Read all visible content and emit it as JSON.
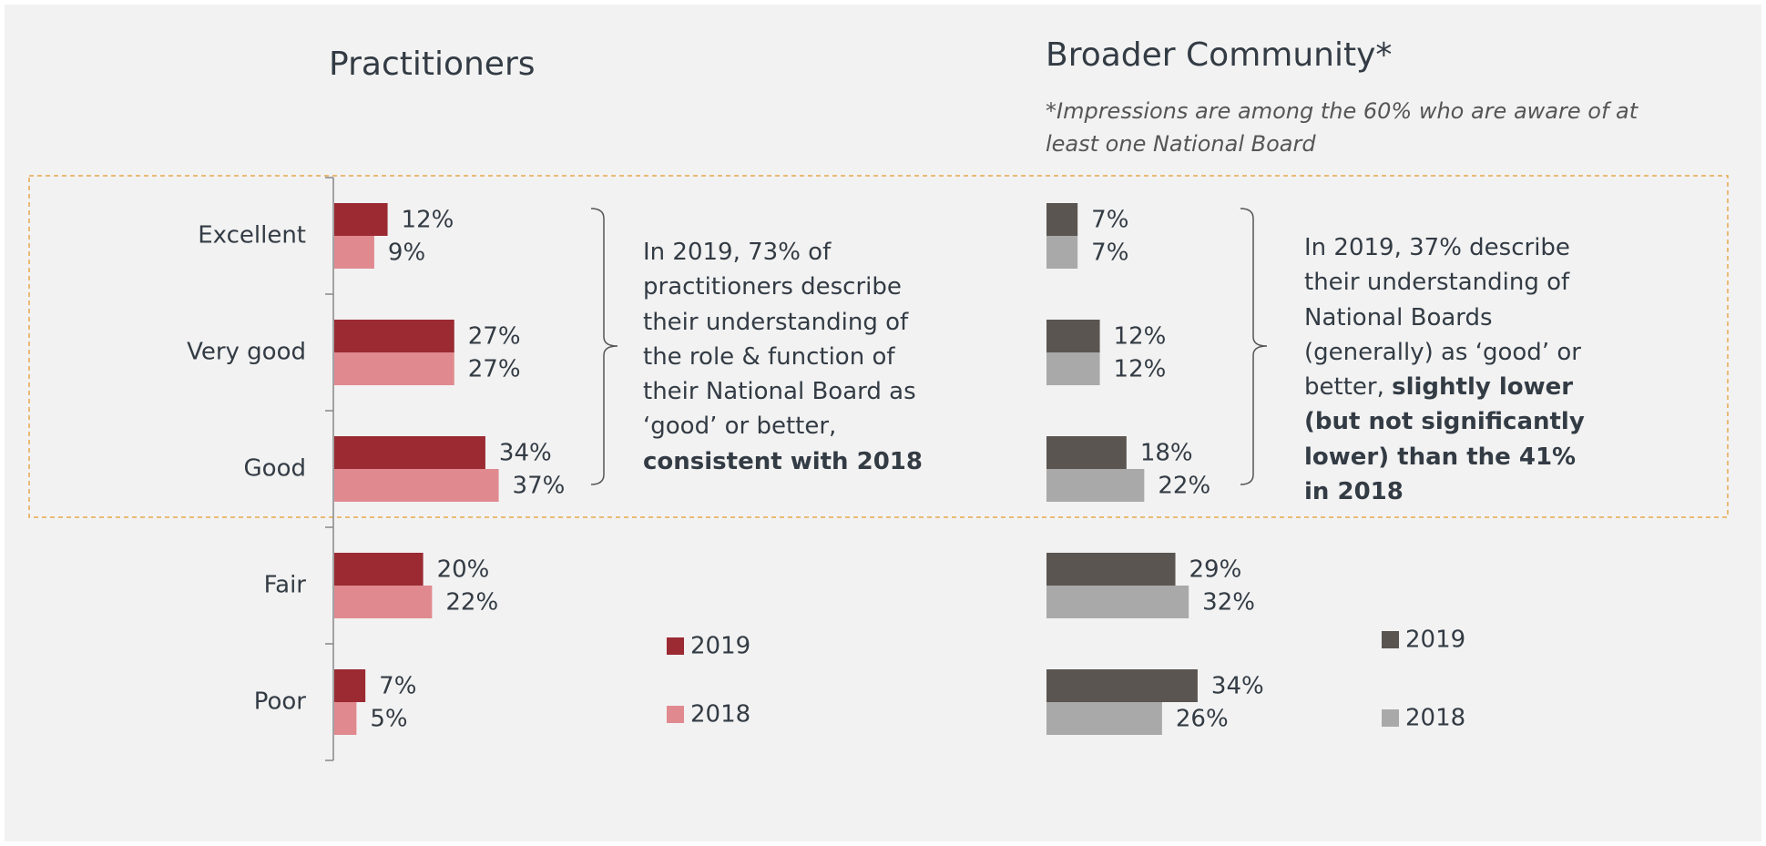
{
  "chart_data": [
    {
      "type": "bar",
      "title": "Practitioners",
      "categories": [
        "Excellent",
        "Very good",
        "Good",
        "Fair",
        "Poor"
      ],
      "series": [
        {
          "name": "2019",
          "color": "#9b2a33",
          "values": [
            12,
            27,
            34,
            20,
            7
          ],
          "value_labels": [
            "12%",
            "27%",
            "34%",
            "20%",
            "7%"
          ]
        },
        {
          "name": "2018",
          "color": "#e08a90",
          "values": [
            9,
            27,
            37,
            22,
            5
          ],
          "value_labels": [
            "9%",
            "27%",
            "37%",
            "22%",
            "5%"
          ]
        }
      ],
      "annotation": {
        "text": "In 2019, 73% of practitioners describe their understanding of the role & function of their National Board as ‘good’ or better,",
        "bold": "consistent with 2018"
      }
    },
    {
      "type": "bar",
      "title": "Broader Community*",
      "subtitle": "*Impressions are among the 60% who are aware of at least one National Board",
      "series": [
        {
          "name": "2019",
          "color": "#5a5550",
          "values": [
            7,
            12,
            18,
            29,
            34
          ],
          "value_labels": [
            "7%",
            "12%",
            "18%",
            "29%",
            "34%"
          ]
        },
        {
          "name": "2018",
          "color": "#a9a9a9",
          "values": [
            7,
            12,
            22,
            32,
            26
          ],
          "value_labels": [
            "7%",
            "12%",
            "22%",
            "32%",
            "26%"
          ]
        }
      ],
      "annotation": {
        "text": "In 2019, 37% describe their understanding of National Boards (generally) as ‘good’ or better,",
        "bold": "slightly lower (but not significantly lower) than the 41% in 2018"
      }
    }
  ]
}
